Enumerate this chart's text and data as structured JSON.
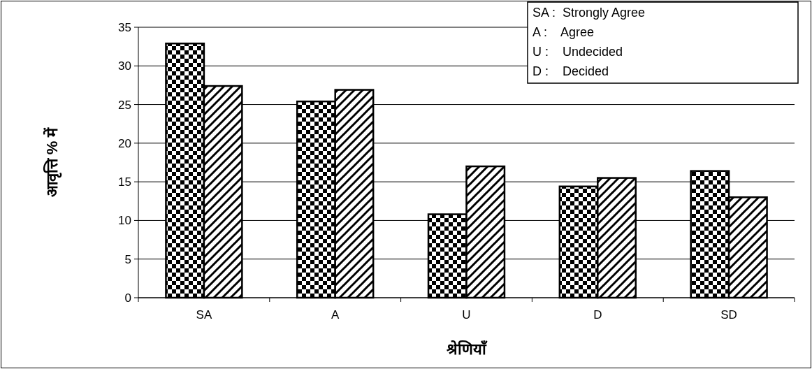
{
  "chart_data": {
    "type": "bar",
    "xlabel": "श्रेणियाँ",
    "ylabel": "आवृत्ति % में",
    "categories": [
      "SA",
      "A",
      "U",
      "D",
      "SD"
    ],
    "series": [
      {
        "color": "#000000",
        "values": [
          32.9,
          25.4,
          10.8,
          14.4,
          16.4
        ]
      },
      {
        "color": "#000000",
        "values": [
          27.4,
          26.9,
          17.0,
          15.5,
          13.0
        ]
      }
    ],
    "ylim": [
      0,
      35
    ],
    "yticks": [
      0,
      5,
      10,
      15,
      20,
      25,
      30,
      35
    ],
    "grid": "y",
    "annotations": [
      "SA :  Strongly Agree",
      "A :    Agree",
      "U :    Undecided",
      "D :    Decided"
    ]
  }
}
